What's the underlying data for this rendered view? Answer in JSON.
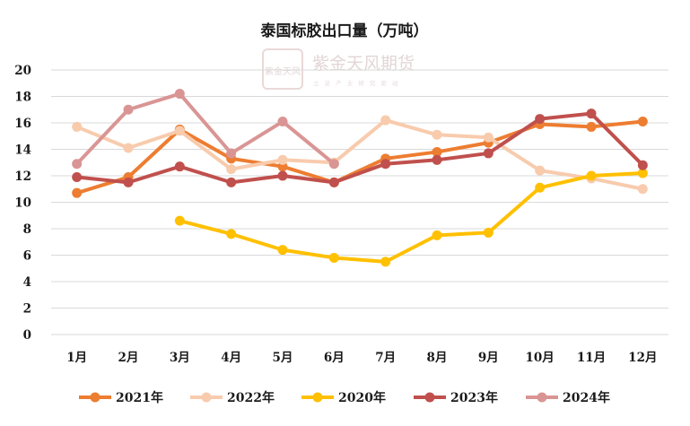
{
  "watermark": {
    "logo_text": "紫金天风",
    "name": "紫金天风期货",
    "tagline": "立 足 产 业   研 究 驱 动"
  },
  "chart_data": {
    "type": "line",
    "title": "泰国标胶出口量（万吨）",
    "xlabel": "",
    "ylabel": "",
    "categories": [
      "1月",
      "2月",
      "3月",
      "4月",
      "5月",
      "6月",
      "7月",
      "8月",
      "9月",
      "10月",
      "11月",
      "12月"
    ],
    "ylim": [
      0,
      20
    ],
    "yticks": [
      0,
      2,
      4,
      6,
      8,
      10,
      12,
      14,
      16,
      18,
      20
    ],
    "grid": true,
    "legend_position": "bottom",
    "series": [
      {
        "name": "2021年",
        "color": "#ED7D31",
        "values": [
          10.7,
          11.9,
          15.5,
          13.3,
          12.7,
          11.5,
          13.3,
          13.8,
          14.5,
          15.9,
          15.7,
          16.1
        ]
      },
      {
        "name": "2022年",
        "color": "#F8CBAD",
        "values": [
          15.7,
          14.1,
          15.4,
          12.5,
          13.2,
          13.0,
          16.2,
          15.1,
          14.9,
          12.4,
          11.8,
          11.0
        ]
      },
      {
        "name": "2020年",
        "color": "#FFC000",
        "values": [
          null,
          null,
          8.6,
          7.6,
          6.4,
          5.8,
          5.5,
          7.5,
          7.7,
          11.1,
          12.0,
          12.2
        ]
      },
      {
        "name": "2023年",
        "color": "#C0504D",
        "values": [
          11.9,
          11.5,
          12.7,
          11.5,
          12.0,
          11.5,
          12.9,
          13.2,
          13.7,
          16.3,
          16.7,
          12.8
        ]
      },
      {
        "name": "2024年",
        "color": "#D99594",
        "values": [
          12.9,
          17.0,
          18.2,
          13.7,
          16.1,
          12.9,
          null,
          null,
          null,
          null,
          null,
          null
        ]
      }
    ]
  }
}
